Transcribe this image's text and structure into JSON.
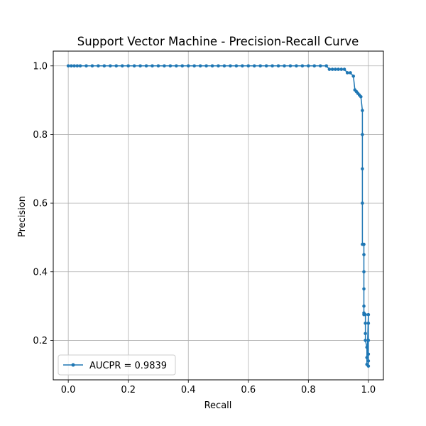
{
  "chart_data": {
    "type": "line",
    "title": "Support Vector Machine - Precision-Recall Curve",
    "xlabel": "Recall",
    "ylabel": "Precision",
    "xlim": [
      -0.05,
      1.05
    ],
    "ylim": [
      0.085,
      1.043
    ],
    "xticks": [
      0.0,
      0.2,
      0.4,
      0.6,
      0.8,
      1.0
    ],
    "xtick_labels": [
      "0.0",
      "0.2",
      "0.4",
      "0.6",
      "0.8",
      "1.0"
    ],
    "yticks": [
      0.2,
      0.4,
      0.6,
      0.8,
      1.0
    ],
    "ytick_labels": [
      "0.2",
      "0.4",
      "0.6",
      "0.8",
      "1.0"
    ],
    "grid": true,
    "legend_position": "lower-left",
    "series": [
      {
        "name": "AUCPR = 0.9839",
        "color": "#1f77b4",
        "marker": "circle",
        "x": [
          0.0,
          0.01,
          0.02,
          0.03,
          0.04,
          0.06,
          0.08,
          0.1,
          0.12,
          0.14,
          0.16,
          0.18,
          0.2,
          0.22,
          0.24,
          0.26,
          0.28,
          0.3,
          0.32,
          0.34,
          0.36,
          0.38,
          0.4,
          0.42,
          0.44,
          0.46,
          0.48,
          0.5,
          0.52,
          0.54,
          0.56,
          0.58,
          0.6,
          0.62,
          0.64,
          0.66,
          0.68,
          0.7,
          0.72,
          0.74,
          0.76,
          0.78,
          0.8,
          0.82,
          0.84,
          0.86,
          0.87,
          0.88,
          0.89,
          0.9,
          0.91,
          0.92,
          0.93,
          0.94,
          0.95,
          0.955,
          0.96,
          0.965,
          0.97,
          0.975,
          0.98,
          0.98,
          0.98,
          0.98,
          0.98,
          0.985,
          0.985,
          0.985,
          0.985,
          0.985,
          0.985,
          0.985,
          0.99,
          0.99,
          0.99,
          0.99,
          0.995,
          0.995,
          0.995,
          1.0,
          1.0,
          1.0,
          1.0,
          1.0,
          1.0
        ],
        "y": [
          1.0,
          1.0,
          1.0,
          1.0,
          1.0,
          1.0,
          1.0,
          1.0,
          1.0,
          1.0,
          1.0,
          1.0,
          1.0,
          1.0,
          1.0,
          1.0,
          1.0,
          1.0,
          1.0,
          1.0,
          1.0,
          1.0,
          1.0,
          1.0,
          1.0,
          1.0,
          1.0,
          1.0,
          1.0,
          1.0,
          1.0,
          1.0,
          1.0,
          1.0,
          1.0,
          1.0,
          1.0,
          1.0,
          1.0,
          1.0,
          1.0,
          1.0,
          1.0,
          1.0,
          1.0,
          1.0,
          0.99,
          0.99,
          0.99,
          0.99,
          0.99,
          0.99,
          0.98,
          0.98,
          0.97,
          0.93,
          0.925,
          0.92,
          0.915,
          0.91,
          0.87,
          0.8,
          0.7,
          0.6,
          0.48,
          0.48,
          0.45,
          0.4,
          0.35,
          0.3,
          0.28,
          0.275,
          0.275,
          0.25,
          0.22,
          0.2,
          0.18,
          0.15,
          0.13,
          0.275,
          0.25,
          0.2,
          0.16,
          0.14,
          0.125
        ]
      }
    ]
  }
}
